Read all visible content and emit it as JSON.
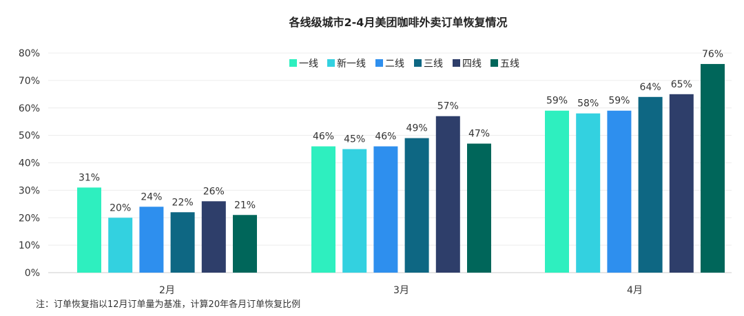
{
  "chart_data": {
    "type": "bar",
    "title": "各线级城市2-4月美团咖啡外卖订单恢复情况",
    "categories": [
      "2月",
      "3月",
      "4月"
    ],
    "series": [
      {
        "name": "一线",
        "color": "#2EEFBF",
        "values": [
          31,
          46,
          59
        ]
      },
      {
        "name": "新一线",
        "color": "#33D1E0",
        "values": [
          20,
          45,
          58
        ]
      },
      {
        "name": "二线",
        "color": "#2E8FEE",
        "values": [
          24,
          46,
          59
        ]
      },
      {
        "name": "三线",
        "color": "#0E6783",
        "values": [
          22,
          49,
          64
        ]
      },
      {
        "name": "四线",
        "color": "#2E3E6A",
        "values": [
          26,
          57,
          65
        ]
      },
      {
        "name": "五线",
        "color": "#00665A",
        "values": [
          21,
          47,
          76
        ]
      }
    ],
    "value_suffix": "%",
    "y_ticks": [
      "0%",
      "10%",
      "20%",
      "30%",
      "40%",
      "50%",
      "60%",
      "70%",
      "80%"
    ],
    "ylim": [
      0,
      80
    ],
    "legend_position": "top-center",
    "grid": true,
    "footnote": "注：订单恢复指以12月订单量为基准，计算20年各月订单恢复比例"
  }
}
